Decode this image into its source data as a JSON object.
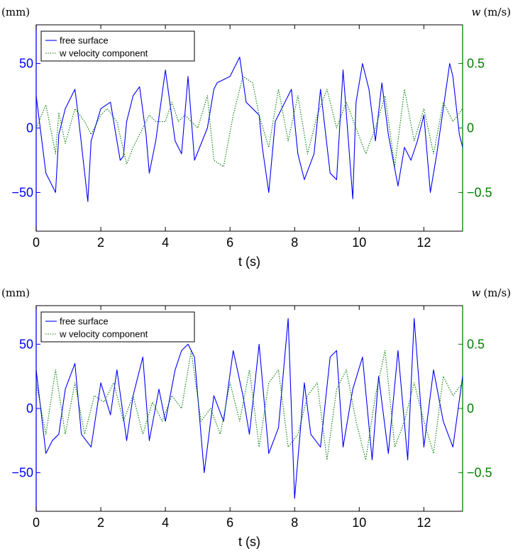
{
  "chart_data": [
    {
      "type": "line",
      "xlabel": "t (s)",
      "ylabel_left": "(mm)",
      "ylabel_right_symbol": "w",
      "ylabel_right_unit": "(m/s)",
      "xlim": [
        0,
        13.2
      ],
      "ylim_left": [
        -80,
        80
      ],
      "ylim_right": [
        -0.8,
        0.8
      ],
      "xticks": [
        0,
        2,
        4,
        6,
        8,
        10,
        12
      ],
      "yticks_left": [
        -50,
        0,
        50
      ],
      "yticks_right": [
        -0.5,
        0,
        0.5
      ],
      "ytick_labels_right": [
        "−0.5",
        "0",
        "0.5"
      ],
      "ytick_labels_left": [
        "−50",
        "0",
        "50"
      ],
      "legend_position": "top-left",
      "grid": false,
      "series": [
        {
          "name": "free surface",
          "axis": "left",
          "color": "#0000ff",
          "dash": "solid",
          "x": [
            0.0,
            0.3,
            0.6,
            0.7,
            0.9,
            1.2,
            1.3,
            1.6,
            1.7,
            2.0,
            2.3,
            2.6,
            2.7,
            2.8,
            3.0,
            3.2,
            3.4,
            3.5,
            3.7,
            4.0,
            4.3,
            4.5,
            4.7,
            4.9,
            5.3,
            5.5,
            5.6,
            6.0,
            6.3,
            6.5,
            6.7,
            6.9,
            7.0,
            7.2,
            7.4,
            7.6,
            7.9,
            8.1,
            8.3,
            8.6,
            8.8,
            9.1,
            9.3,
            9.5,
            9.8,
            9.9,
            10.1,
            10.3,
            10.5,
            10.7,
            10.9,
            11.2,
            11.4,
            11.6,
            11.8,
            12.0,
            12.2,
            12.4,
            12.8,
            12.9,
            13.1,
            13.2
          ],
          "y": [
            25,
            -35,
            -50,
            -5,
            15,
            30,
            10,
            -57,
            -10,
            15,
            20,
            -25,
            -22,
            5,
            25,
            32,
            -5,
            -35,
            -10,
            45,
            -10,
            -20,
            40,
            -25,
            0,
            30,
            35,
            40,
            55,
            20,
            15,
            10,
            -15,
            -50,
            5,
            15,
            30,
            -20,
            -40,
            -20,
            30,
            -35,
            -40,
            45,
            -55,
            20,
            50,
            30,
            -10,
            35,
            -5,
            -45,
            -15,
            -25,
            -10,
            10,
            -50,
            -20,
            50,
            40,
            -5,
            -15
          ]
        },
        {
          "name": "w velocity component",
          "axis": "right",
          "color": "#008000",
          "dash": "dotted",
          "x": [
            0.0,
            0.3,
            0.6,
            0.7,
            0.9,
            1.2,
            1.5,
            1.7,
            2.0,
            2.2,
            2.5,
            2.8,
            3.0,
            3.3,
            3.5,
            3.7,
            4.0,
            4.2,
            4.4,
            4.6,
            5.0,
            5.3,
            5.5,
            5.8,
            6.1,
            6.4,
            6.7,
            6.9,
            7.2,
            7.5,
            7.8,
            8.1,
            8.4,
            8.7,
            9.0,
            9.3,
            9.6,
            9.9,
            10.2,
            10.5,
            10.8,
            11.1,
            11.4,
            11.7,
            12.0,
            12.3,
            12.6,
            12.9,
            13.2
          ],
          "y": [
            0.0,
            0.18,
            -0.2,
            0.12,
            -0.12,
            0.15,
            0.05,
            -0.05,
            0.1,
            0.15,
            0.05,
            -0.28,
            -0.15,
            0.0,
            0.1,
            0.05,
            0.05,
            0.2,
            0.05,
            0.1,
            0.0,
            0.25,
            -0.25,
            -0.3,
            0.1,
            0.4,
            0.35,
            0.1,
            -0.15,
            0.3,
            -0.1,
            0.25,
            -0.2,
            0.1,
            0.3,
            0.0,
            0.2,
            0.0,
            -0.2,
            0.0,
            0.25,
            -0.3,
            0.3,
            -0.1,
            0.15,
            -0.2,
            0.2,
            0.05,
            0.15
          ]
        }
      ]
    },
    {
      "type": "line",
      "xlabel": "t (s)",
      "ylabel_left": "(mm)",
      "ylabel_right_symbol": "w",
      "ylabel_right_unit": "(m/s)",
      "xlim": [
        0,
        13.2
      ],
      "ylim_left": [
        -80,
        80
      ],
      "ylim_right": [
        -0.8,
        0.8
      ],
      "xticks": [
        0,
        2,
        4,
        6,
        8,
        10,
        12
      ],
      "yticks_left": [
        -50,
        0,
        50
      ],
      "yticks_right": [
        -0.5,
        0,
        0.5
      ],
      "ytick_labels_right": [
        "−0.5",
        "0",
        "0.5"
      ],
      "ytick_labels_left": [
        "−50",
        "0",
        "50"
      ],
      "legend_position": "top-left",
      "grid": false,
      "series": [
        {
          "name": "free surface",
          "axis": "left",
          "color": "#0000ff",
          "dash": "solid",
          "x": [
            0.0,
            0.3,
            0.5,
            0.7,
            0.9,
            1.2,
            1.4,
            1.7,
            2.0,
            2.3,
            2.5,
            2.8,
            3.0,
            3.3,
            3.5,
            3.8,
            4.0,
            4.3,
            4.5,
            4.7,
            4.9,
            5.2,
            5.5,
            5.8,
            6.1,
            6.4,
            6.6,
            6.9,
            7.2,
            7.5,
            7.8,
            8.0,
            8.3,
            8.5,
            8.8,
            9.1,
            9.3,
            9.5,
            9.8,
            10.1,
            10.4,
            10.6,
            10.9,
            11.2,
            11.5,
            11.7,
            12.0,
            12.3,
            12.6,
            12.9,
            13.2
          ],
          "y": [
            30,
            -35,
            -25,
            -20,
            15,
            35,
            -20,
            -30,
            20,
            -5,
            30,
            -25,
            10,
            40,
            -25,
            15,
            -10,
            30,
            45,
            50,
            40,
            -50,
            10,
            -10,
            45,
            10,
            -20,
            50,
            -35,
            -15,
            70,
            -70,
            20,
            -20,
            -30,
            40,
            45,
            -30,
            15,
            40,
            -40,
            25,
            -35,
            45,
            -40,
            70,
            -30,
            30,
            -10,
            -30,
            25
          ]
        },
        {
          "name": "w velocity component",
          "axis": "right",
          "color": "#008000",
          "dash": "dotted",
          "x": [
            0.0,
            0.3,
            0.6,
            0.9,
            1.2,
            1.5,
            1.8,
            2.1,
            2.4,
            2.7,
            3.0,
            3.3,
            3.6,
            3.9,
            4.2,
            4.5,
            4.8,
            5.1,
            5.4,
            5.7,
            6.0,
            6.3,
            6.6,
            6.9,
            7.2,
            7.5,
            7.8,
            8.1,
            8.4,
            8.7,
            9.0,
            9.3,
            9.6,
            9.9,
            10.2,
            10.5,
            10.8,
            11.1,
            11.4,
            11.7,
            12.0,
            12.3,
            12.6,
            12.9,
            13.2
          ],
          "y": [
            0.2,
            -0.2,
            0.3,
            -0.2,
            0.2,
            -0.2,
            0.1,
            0.05,
            0.2,
            -0.1,
            0.1,
            -0.2,
            0.05,
            -0.1,
            0.1,
            0.0,
            0.45,
            -0.1,
            0.0,
            -0.2,
            0.2,
            -0.1,
            0.3,
            -0.3,
            0.2,
            0.3,
            -0.3,
            -0.2,
            0.1,
            0.2,
            -0.4,
            0.15,
            0.3,
            -0.1,
            -0.4,
            0.1,
            0.45,
            -0.3,
            -0.1,
            0.2,
            -0.1,
            -0.35,
            0.25,
            0.1,
            0.2
          ]
        }
      ]
    }
  ]
}
